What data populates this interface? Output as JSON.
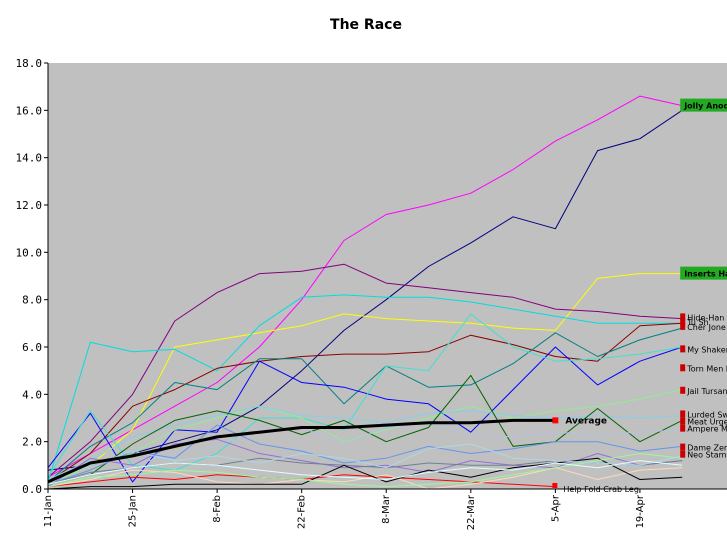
{
  "chart_data": {
    "type": "line",
    "title": "The Race",
    "xlabel": "",
    "ylabel": "",
    "ylim": [
      0,
      18
    ],
    "yticks": [
      "0.0",
      "2.0",
      "4.0",
      "6.0",
      "8.0",
      "10.0",
      "12.0",
      "14.0",
      "16.0",
      "18.0"
    ],
    "x_dates": [
      "11-Jan",
      "18-Jan",
      "25-Jan",
      "1-Feb",
      "8-Feb",
      "15-Feb",
      "22-Feb",
      "1-Mar",
      "8-Mar",
      "15-Mar",
      "22-Mar",
      "29-Mar",
      "5-Apr",
      "12-Apr",
      "19-Apr",
      "26-Apr"
    ],
    "xticks": [
      "11-Jan",
      "25-Jan",
      "8-Feb",
      "22-Feb",
      "8-Mar",
      "22-Mar",
      "5-Apr",
      "19-Apr"
    ],
    "grid": false,
    "background": "#c0c0c0",
    "series": [
      {
        "name": "Jolly Anode Ogre",
        "color": "#ff00ff",
        "highlight": "#22aa22",
        "values": [
          0.5,
          1.5,
          2.5,
          3.5,
          4.5,
          6.0,
          8.0,
          10.5,
          11.6,
          12.0,
          12.5,
          13.5,
          14.7,
          15.6,
          16.6,
          16.2
        ]
      },
      {
        "name": "",
        "color": "#000080",
        "values": [
          0.8,
          1.0,
          1.5,
          2.0,
          2.5,
          3.5,
          5.0,
          6.7,
          8.0,
          9.4,
          10.4,
          11.5,
          11.0,
          14.3,
          14.8,
          16.0
        ]
      },
      {
        "name": "Inserts Hacks",
        "color": "#ffff00",
        "highlight": "#22aa22",
        "values": [
          0.3,
          1.0,
          2.5,
          6.0,
          6.3,
          6.6,
          6.9,
          7.4,
          7.2,
          7.1,
          7.0,
          6.8,
          6.7,
          8.9,
          9.1,
          9.1
        ]
      },
      {
        "name": "Hide-Han Hacker",
        "color": "#800080",
        "values": [
          0.5,
          2.0,
          4.0,
          7.1,
          8.3,
          9.1,
          9.2,
          9.5,
          8.7,
          8.5,
          8.3,
          8.1,
          7.6,
          7.5,
          7.3,
          7.2
        ]
      },
      {
        "name": "My Shaken Yen",
        "color": "#00dddd",
        "values": [
          0.3,
          6.2,
          5.8,
          5.9,
          5.0,
          6.9,
          8.1,
          8.2,
          8.1,
          8.1,
          7.9,
          7.6,
          7.3,
          7.0,
          7.0,
          7.0
        ]
      },
      {
        "name": "Cher Jone En",
        "color": "#8b0000",
        "values": [
          0.3,
          1.5,
          3.5,
          4.2,
          5.1,
          5.4,
          5.6,
          5.7,
          5.7,
          5.8,
          6.5,
          6.1,
          5.6,
          5.4,
          6.9,
          7.0
        ]
      },
      {
        "name": "Torn Men Rev Clan",
        "color": "#008080",
        "values": [
          0.3,
          1.8,
          2.8,
          4.5,
          4.2,
          5.5,
          5.5,
          3.6,
          5.2,
          4.3,
          4.4,
          5.3,
          6.6,
          5.6,
          6.3,
          6.8
        ]
      },
      {
        "name": "Jail Tursang",
        "color": "#0000ff",
        "values": [
          0.9,
          3.2,
          0.3,
          2.5,
          2.4,
          5.4,
          4.5,
          4.3,
          3.8,
          3.6,
          2.4,
          4.2,
          6.0,
          4.4,
          5.4,
          6.0
        ]
      },
      {
        "name": "Lurded Swivels",
        "color": "#40e0d0",
        "values": [
          0.5,
          3.3,
          1.0,
          0.8,
          1.5,
          3.0,
          3.0,
          2.5,
          5.2,
          5.0,
          7.4,
          6.0,
          5.4,
          5.5,
          5.7,
          6.0
        ]
      },
      {
        "name": "Meat Urge Maniac",
        "color": "#90ee90",
        "values": [
          0.2,
          1.0,
          1.5,
          2.5,
          3.0,
          3.5,
          3.0,
          2.0,
          2.5,
          3.0,
          3.5,
          3.0,
          3.3,
          3.5,
          3.8,
          4.2
        ]
      },
      {
        "name": "Ampere Mast",
        "color": "#87ceeb",
        "values": [
          0.4,
          1.2,
          2.2,
          2.7,
          3.1,
          3.5,
          3.1,
          3.0,
          2.8,
          3.2,
          3.3,
          3.1,
          3.0,
          3.1,
          3.0,
          3.1
        ]
      },
      {
        "name": "Dame Zero Zen Rhos",
        "color": "#006400",
        "values": [
          0.2,
          0.6,
          1.9,
          2.9,
          3.3,
          2.9,
          2.3,
          2.9,
          2.0,
          2.6,
          4.8,
          1.8,
          2.0,
          3.4,
          2.0,
          2.9
        ]
      },
      {
        "name": "Neo Stamina",
        "color": "#b0c4de",
        "values": [
          0.1,
          0.5,
          1.0,
          1.5,
          1.8,
          2.5,
          2.6,
          1.9,
          2.6,
          2.8,
          2.3,
          2.2,
          2.4,
          2.3,
          2.4,
          2.5
        ]
      },
      {
        "name": "Average",
        "color": "#000000",
        "bold": true,
        "values": [
          0.3,
          1.1,
          1.4,
          1.8,
          2.2,
          2.4,
          2.6,
          2.6,
          2.7,
          2.8,
          2.8,
          2.9,
          2.9,
          null,
          null,
          null
        ]
      },
      {
        "name": "Help Fold Crab Leg",
        "color": "#ff0000",
        "values": [
          0.1,
          0.3,
          0.5,
          0.4,
          0.6,
          0.5,
          0.4,
          0.6,
          0.5,
          0.4,
          0.3,
          0.2,
          0.1,
          null,
          null,
          null
        ]
      },
      {
        "name": "",
        "color": "#6495ed",
        "values": [
          0.2,
          0.8,
          1.6,
          1.3,
          2.7,
          1.9,
          1.6,
          1.1,
          1.3,
          1.8,
          1.5,
          1.7,
          2.0,
          2.0,
          1.6,
          1.8
        ]
      },
      {
        "name": "",
        "color": "#9370db",
        "values": [
          0.1,
          1.3,
          1.0,
          1.9,
          2.1,
          1.5,
          1.2,
          0.9,
          1.0,
          0.7,
          1.2,
          1.0,
          0.9,
          1.5,
          1.0,
          1.2
        ]
      },
      {
        "name": "",
        "color": "#ffdab9",
        "values": [
          0.1,
          0.4,
          0.8,
          0.7,
          0.3,
          0.2,
          0.4,
          0.3,
          0.6,
          0.0,
          0.2,
          0.5,
          0.9,
          0.4,
          0.8,
          0.9
        ]
      },
      {
        "name": "",
        "color": "#708090",
        "values": [
          0.2,
          0.7,
          0.9,
          1.1,
          1.0,
          1.3,
          1.1,
          1.0,
          0.9,
          1.1,
          1.0,
          1.0,
          1.2,
          1.1,
          1.0,
          1.2
        ]
      },
      {
        "name": "",
        "color": "#000000",
        "values": [
          0.0,
          0.1,
          0.1,
          0.2,
          0.2,
          0.2,
          0.2,
          1.0,
          0.3,
          0.8,
          0.5,
          0.9,
          1.1,
          1.3,
          0.4,
          0.5
        ]
      },
      {
        "name": "",
        "color": "#98fb98",
        "values": [
          0.1,
          0.5,
          0.6,
          0.8,
          0.7,
          0.5,
          0.4,
          0.2,
          0.1,
          0.2,
          0.3,
          0.6,
          0.9,
          1.2,
          1.5,
          1.3
        ]
      },
      {
        "name": "",
        "color": "#add8e6",
        "values": [
          0.3,
          1.0,
          1.6,
          1.2,
          1.4,
          1.1,
          1.5,
          1.3,
          0.9,
          1.7,
          1.9,
          1.3,
          1.2,
          1.1,
          1.0,
          1.4
        ]
      },
      {
        "name": "",
        "color": "#e0ffff",
        "values": [
          0.2,
          0.6,
          0.9,
          1.1,
          1.0,
          0.8,
          0.6,
          0.5,
          0.4,
          0.7,
          0.9,
          0.8,
          1.1,
          0.9,
          1.2,
          1.0
        ]
      }
    ],
    "right_labels": [
      {
        "text": "Jolly Anode Ogre",
        "y": 16.2,
        "highlight": true
      },
      {
        "text": "Inserts Hacks",
        "y": 9.1,
        "highlight": true
      },
      {
        "text": "Hide-Han Ha",
        "y": 7.25
      },
      {
        "text": "Tu Sh",
        "y": 7.05
      },
      {
        "text": "Cher Jone En",
        "y": 6.85
      },
      {
        "text": "My Shaken Yen",
        "y": 5.9
      },
      {
        "text": "Torn Men Rev Clan",
        "y": 5.1
      },
      {
        "text": "Jail Tursang",
        "y": 4.15
      },
      {
        "text": "Lurded Swivels",
        "y": 3.15
      },
      {
        "text": "Meat Urge Maniac",
        "y": 2.85
      },
      {
        "text": "Ampere Mast",
        "y": 2.55
      },
      {
        "text": "Dame Zero Zen Rhos",
        "y": 1.75
      },
      {
        "text": "Neo Stamina",
        "y": 1.45
      },
      {
        "text": "Help Fold Crab Leg",
        "y": 0.0,
        "left": true
      }
    ],
    "average_label": "Average"
  }
}
